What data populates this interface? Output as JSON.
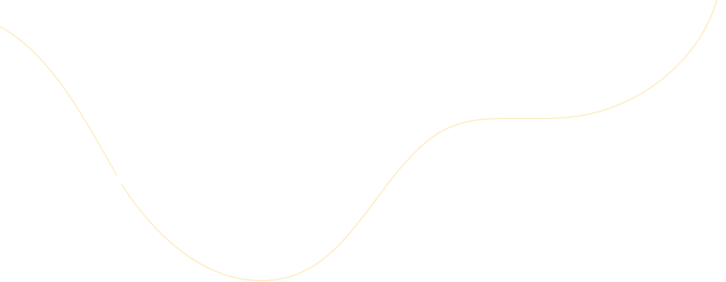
{
  "background_color": "#ffffff",
  "curve_color": "#fdefc8"
}
